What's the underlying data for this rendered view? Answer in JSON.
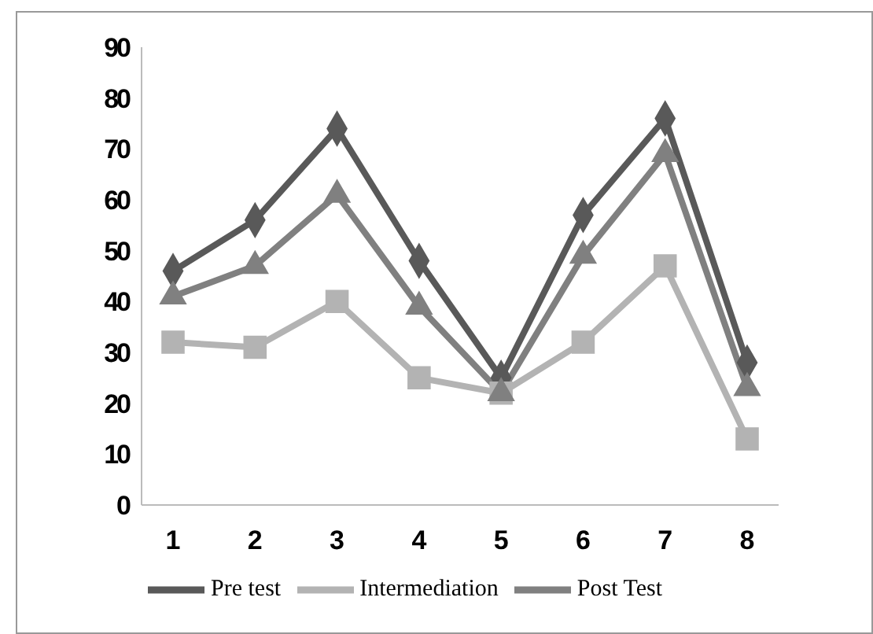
{
  "chart_data": {
    "type": "line",
    "categories": [
      "1",
      "2",
      "3",
      "4",
      "5",
      "6",
      "7",
      "8"
    ],
    "series": [
      {
        "name": "Pre test",
        "color": "#595959",
        "marker": "diamond",
        "values": [
          46,
          56,
          74,
          48,
          25,
          57,
          76,
          28
        ]
      },
      {
        "name": "Intermediation",
        "color": "#b3b3b3",
        "marker": "square",
        "values": [
          32,
          31,
          40,
          25,
          22,
          32,
          47,
          13
        ]
      },
      {
        "name": "Post Test",
        "color": "#808080",
        "marker": "triangle",
        "values": [
          41,
          47,
          61,
          39,
          22,
          49,
          69,
          23
        ]
      }
    ],
    "ylim": [
      0,
      90
    ],
    "yticks": [
      0,
      10,
      20,
      30,
      40,
      50,
      60,
      70,
      80,
      90
    ],
    "grid": false,
    "legend": "bottom"
  }
}
